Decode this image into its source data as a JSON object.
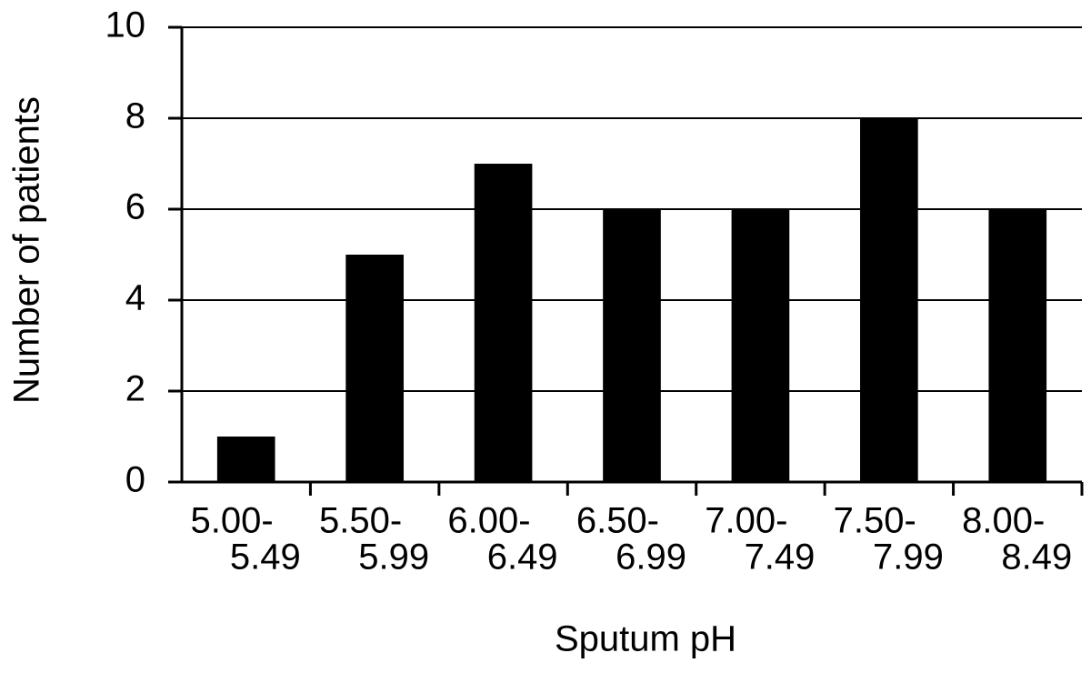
{
  "chart_data": {
    "type": "bar",
    "x_label": "Sputum pH",
    "y_label": "Number of patients",
    "categories": [
      [
        "5.00-",
        "5.49"
      ],
      [
        "5.50-",
        "5.99"
      ],
      [
        "6.00-",
        "6.49"
      ],
      [
        "6.50-",
        "6.99"
      ],
      [
        "7.00-",
        "7.49"
      ],
      [
        "7.50-",
        "7.99"
      ],
      [
        "8.00-",
        "8.49"
      ]
    ],
    "values": [
      1,
      5,
      7,
      6,
      6,
      8,
      6
    ],
    "color": "#000000",
    "ylim": [
      0,
      10
    ],
    "yticks": [
      0,
      2,
      4,
      6,
      8,
      10
    ],
    "grid": true
  }
}
